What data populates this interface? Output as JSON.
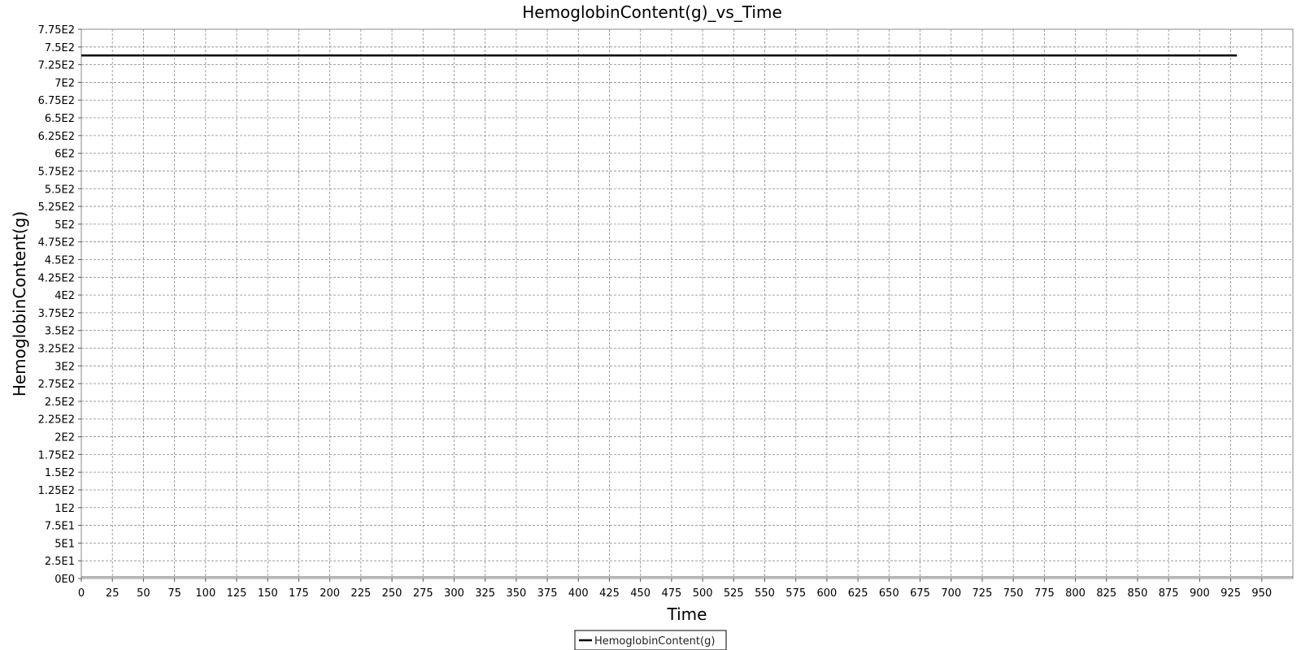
{
  "chart_data": {
    "type": "line",
    "title": "HemoglobinContent(g)_vs_Time",
    "xlabel": "Time",
    "ylabel": "HemoglobinContent(g)",
    "xlim": [
      0,
      975
    ],
    "ylim": [
      0,
      775
    ],
    "x_ticks": [
      "0",
      "25",
      "50",
      "75",
      "100",
      "125",
      "150",
      "175",
      "200",
      "225",
      "250",
      "275",
      "300",
      "325",
      "350",
      "375",
      "400",
      "425",
      "450",
      "475",
      "500",
      "525",
      "550",
      "575",
      "600",
      "625",
      "650",
      "675",
      "700",
      "725",
      "750",
      "775",
      "800",
      "825",
      "850",
      "875",
      "900",
      "925",
      "950"
    ],
    "y_ticks": [
      "0E0",
      "2.5E1",
      "5E1",
      "7.5E1",
      "1E2",
      "1.25E2",
      "1.5E2",
      "1.75E2",
      "2E2",
      "2.25E2",
      "2.5E2",
      "2.75E2",
      "3E2",
      "3.25E2",
      "3.5E2",
      "3.75E2",
      "4E2",
      "4.25E2",
      "4.5E2",
      "4.75E2",
      "5E2",
      "5.25E2",
      "5.5E2",
      "5.75E2",
      "6E2",
      "6.25E2",
      "6.5E2",
      "6.75E2",
      "7E2",
      "7.25E2",
      "7.5E2",
      "7.75E2"
    ],
    "grid": true,
    "legend_position": "bottom-center",
    "series": [
      {
        "name": "HemoglobinContent(g)",
        "color": "#000000",
        "x": [
          0,
          930
        ],
        "y": [
          738,
          738
        ]
      }
    ]
  }
}
